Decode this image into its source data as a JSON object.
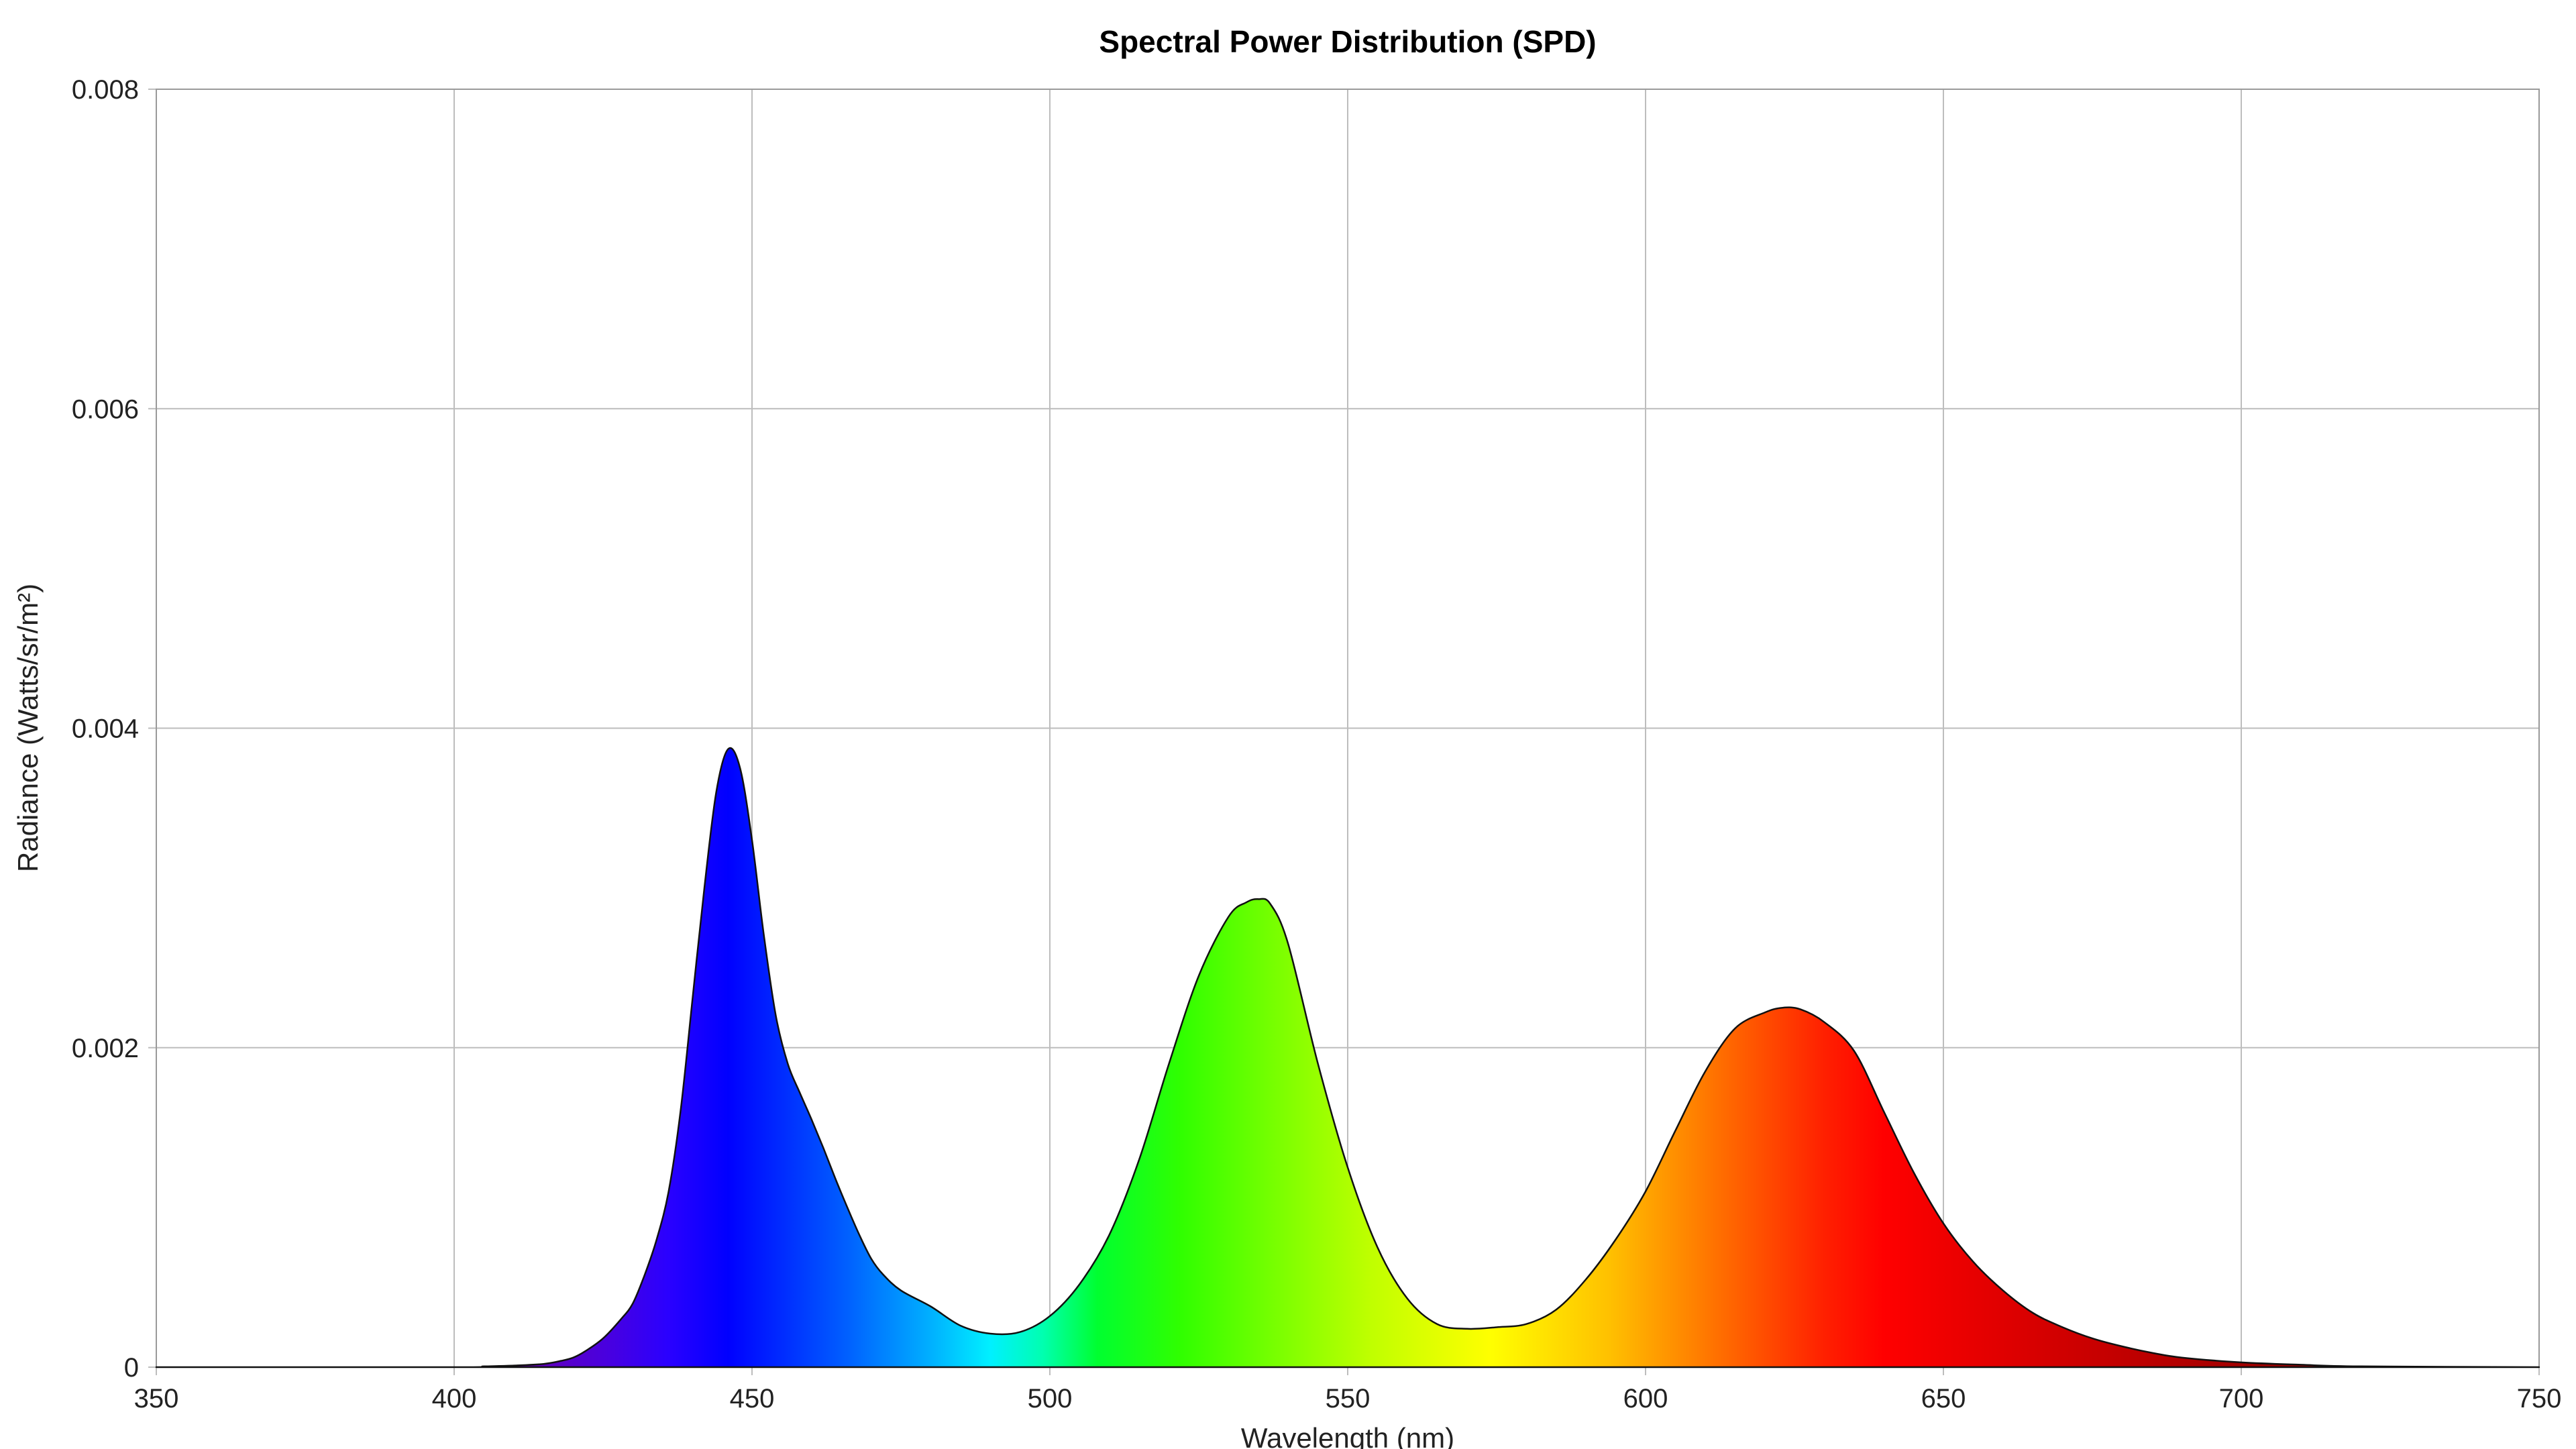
{
  "chart_data": {
    "type": "area",
    "title": "Spectral Power Distribution (SPD)",
    "xlabel": "Wavelength (nm)",
    "ylabel": "Radiance (Watts/sr/m²)",
    "xlim": [
      350,
      750
    ],
    "ylim": [
      0,
      0.008
    ],
    "xticks": [
      350,
      400,
      450,
      500,
      550,
      600,
      650,
      700,
      750
    ],
    "xtick_labels": [
      "350",
      "400",
      "450",
      "500",
      "550",
      "600",
      "650",
      "700",
      "750"
    ],
    "yticks": [
      0,
      0.002,
      0.004,
      0.006,
      0.008
    ],
    "ytick_labels": [
      "0",
      "0.002",
      "0.004",
      "0.006",
      "0.008"
    ],
    "grid": true,
    "fill": "visible-spectrum-gradient",
    "series": [
      {
        "x": [
          350,
          400,
          405,
          410,
          415,
          418,
          420,
          422,
          425,
          428,
          430,
          432,
          434,
          436,
          438,
          440,
          442,
          444,
          446,
          448,
          450,
          452,
          454,
          456,
          458,
          460,
          462,
          464,
          466,
          468,
          470,
          472,
          475,
          480,
          485,
          490,
          495,
          500,
          505,
          510,
          515,
          520,
          525,
          530,
          533,
          535,
          537,
          540,
          545,
          550,
          555,
          560,
          565,
          570,
          575,
          580,
          585,
          590,
          595,
          600,
          605,
          610,
          615,
          620,
          623,
          626,
          630,
          635,
          640,
          645,
          650,
          655,
          660,
          665,
          670,
          675,
          680,
          685,
          690,
          700,
          710,
          720,
          750
        ],
        "y": [
          0,
          0,
          5e-06,
          1e-05,
          2e-05,
          4e-05,
          6e-05,
          0.0001,
          0.00018,
          0.0003,
          0.0004,
          0.00058,
          0.0008,
          0.0011,
          0.0016,
          0.0023,
          0.003,
          0.0036,
          0.00387,
          0.00375,
          0.0033,
          0.0027,
          0.0022,
          0.0019,
          0.00172,
          0.00155,
          0.00137,
          0.00118,
          0.001,
          0.00083,
          0.00068,
          0.00058,
          0.00048,
          0.00038,
          0.00026,
          0.00021,
          0.00022,
          0.00032,
          0.00052,
          0.00083,
          0.0013,
          0.0019,
          0.00245,
          0.00282,
          0.00291,
          0.00293,
          0.0029,
          0.00265,
          0.0019,
          0.00125,
          0.00075,
          0.00043,
          0.00027,
          0.00024,
          0.00025,
          0.00027,
          0.00036,
          0.00055,
          0.0008,
          0.0011,
          0.00148,
          0.00185,
          0.00212,
          0.00222,
          0.00225,
          0.00224,
          0.00216,
          0.00198,
          0.0016,
          0.00122,
          0.0009,
          0.00066,
          0.00048,
          0.00034,
          0.00025,
          0.00018,
          0.00013,
          9e-05,
          6e-05,
          3e-05,
          1.5e-05,
          5e-06,
          0
        ]
      }
    ]
  }
}
